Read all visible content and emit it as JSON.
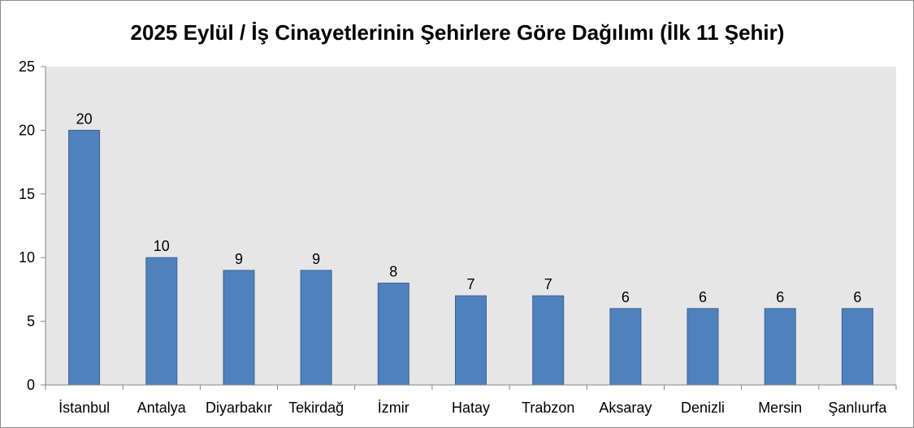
{
  "chart_data": {
    "type": "bar",
    "title": "2025 Eylül / İş Cinayetlerinin Şehirlere Göre Dağılımı (İlk 11 Şehir)",
    "xlabel": "",
    "ylabel": "",
    "categories": [
      "İstanbul",
      "Antalya",
      "Diyarbakır",
      "Tekirdağ",
      "İzmir",
      "Hatay",
      "Trabzon",
      "Aksaray",
      "Denizli",
      "Mersin",
      "Şanlıurfa"
    ],
    "values": [
      20,
      10,
      9,
      9,
      8,
      7,
      7,
      6,
      6,
      6,
      6
    ],
    "ylim": [
      0,
      25
    ],
    "yticks": [
      0,
      5,
      10,
      15,
      20,
      25
    ],
    "grid": false,
    "legend": "none",
    "colors": {
      "bar": "#4f81bd",
      "bar_border": "#3a6593",
      "plot_background": "#e6e6e6",
      "axis": "#868686"
    }
  }
}
